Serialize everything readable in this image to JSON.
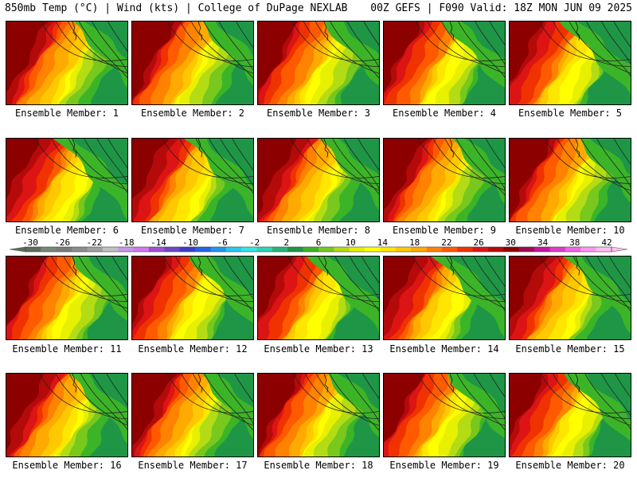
{
  "header": {
    "left_title": "850mb Temp (°C) | Wind (kts) | College of DuPage NEXLAB",
    "right_title": "00Z GEFS | F090 Valid: 18Z MON JUN 09 2025"
  },
  "panels": [
    {
      "label": "Ensemble Member: 1"
    },
    {
      "label": "Ensemble Member: 2"
    },
    {
      "label": "Ensemble Member: 3"
    },
    {
      "label": "Ensemble Member: 4"
    },
    {
      "label": "Ensemble Member: 5"
    },
    {
      "label": "Ensemble Member: 6"
    },
    {
      "label": "Ensemble Member: 7"
    },
    {
      "label": "Ensemble Member: 8"
    },
    {
      "label": "Ensemble Member: 9"
    },
    {
      "label": "Ensemble Member: 10"
    },
    {
      "label": "Ensemble Member: 11"
    },
    {
      "label": "Ensemble Member: 12"
    },
    {
      "label": "Ensemble Member: 13"
    },
    {
      "label": "Ensemble Member: 14"
    },
    {
      "label": "Ensemble Member: 15"
    },
    {
      "label": "Ensemble Member: 16"
    },
    {
      "label": "Ensemble Member: 17"
    },
    {
      "label": "Ensemble Member: 18"
    },
    {
      "label": "Ensemble Member: 19"
    },
    {
      "label": "Ensemble Member: 20"
    }
  ],
  "colorbar": {
    "ticks": [
      "-30",
      "-26",
      "-22",
      "-18",
      "-14",
      "-10",
      "-6",
      "-2",
      "2",
      "6",
      "10",
      "14",
      "18",
      "22",
      "26",
      "30",
      "34",
      "38",
      "42"
    ],
    "colors": [
      "#5a6e5a",
      "#778877",
      "#7a7a7a",
      "#8c8c8c",
      "#a0a0a0",
      "#c0c0c0",
      "#c896e6",
      "#d278f0",
      "#a050d2",
      "#6e46c8",
      "#3c3cc8",
      "#1e64e6",
      "#1e96f0",
      "#28c8f0",
      "#32e6e6",
      "#32d2b4",
      "#28b478",
      "#1e9646",
      "#3cb428",
      "#78c81e",
      "#b4dc14",
      "#e6f000",
      "#ffff00",
      "#ffe600",
      "#ffc800",
      "#ffaa00",
      "#ff8200",
      "#ff5a00",
      "#f03200",
      "#dc1414",
      "#b40a0a",
      "#8c0000",
      "#a00a50",
      "#c814a0",
      "#dc3cc8",
      "#f064e6",
      "#ff96f0",
      "#ffbef0"
    ]
  }
}
